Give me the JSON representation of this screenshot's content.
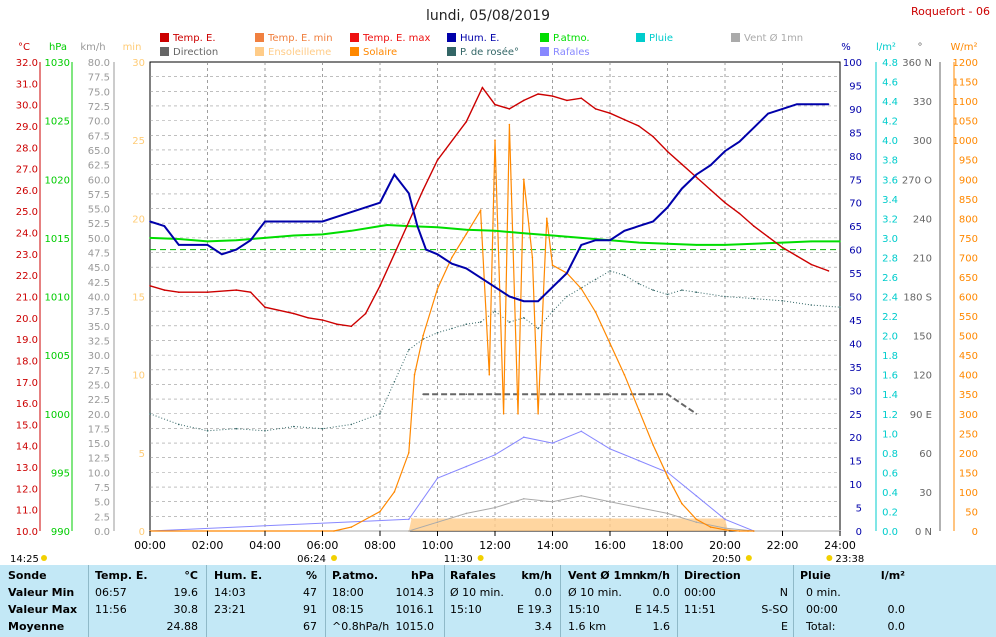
{
  "title": "lundi, 05/08/2019",
  "station": "Roquefort - 06",
  "legend": [
    {
      "label": "Temp. E.",
      "color": "#cc0000"
    },
    {
      "label": "Temp. E. min",
      "color": "#f08040"
    },
    {
      "label": "Temp. E. max",
      "color": "#ee1111"
    },
    {
      "label": "Hum. E.",
      "color": "#0000aa"
    },
    {
      "label": "P.atmo.",
      "color": "#00dd00"
    },
    {
      "label": "Pluie",
      "color": "#00cccc"
    },
    {
      "label": "Vent Ø 1mn",
      "color": "#aaaaaa"
    },
    {
      "label": "Direction",
      "color": "#666666"
    },
    {
      "label": "Ensoleilleme",
      "color": "#ffcc88"
    },
    {
      "label": "Solaire",
      "color": "#ff8800"
    },
    {
      "label": "P. de rosée°",
      "color": "#336666"
    },
    {
      "label": "Rafales",
      "color": "#8888ff"
    }
  ],
  "axes": {
    "temp": {
      "unit": "°C",
      "color": "#cc0000",
      "ticks": [
        "32.0",
        "31.0",
        "30.0",
        "29.0",
        "28.0",
        "27.0",
        "26.0",
        "25.0",
        "24.0",
        "23.0",
        "22.0",
        "21.0",
        "20.0",
        "19.0",
        "18.0",
        "17.0",
        "16.0",
        "15.0",
        "14.0",
        "13.0",
        "12.0",
        "11.0",
        "10.0"
      ]
    },
    "pressure": {
      "unit": "hPa",
      "color": "#00cc00",
      "ticks": [
        "1030",
        "1025",
        "1020",
        "1015",
        "1010",
        "1005",
        "1000",
        "995",
        "990"
      ]
    },
    "wind": {
      "unit": "km/h",
      "color": "#999999",
      "ticks": [
        "80.0",
        "77.5",
        "75.0",
        "72.5",
        "70.0",
        "67.5",
        "65.0",
        "62.5",
        "60.0",
        "57.5",
        "55.0",
        "52.5",
        "50.0",
        "47.5",
        "45.0",
        "42.5",
        "40.0",
        "37.5",
        "35.0",
        "32.5",
        "30.0",
        "27.5",
        "25.0",
        "22.5",
        "20.0",
        "17.5",
        "15.0",
        "12.5",
        "10.0",
        "7.5",
        "5.0",
        "2.5",
        "0.0"
      ]
    },
    "sun_min": {
      "unit": "min",
      "color": "#ffcc77",
      "ticks": [
        "30",
        "25",
        "20",
        "15",
        "10",
        "5",
        "0"
      ]
    },
    "humidity": {
      "unit": "%",
      "color": "#0000aa",
      "ticks": [
        "100",
        "95",
        "90",
        "85",
        "80",
        "75",
        "70",
        "65",
        "60",
        "55",
        "50",
        "45",
        "40",
        "35",
        "30",
        "25",
        "20",
        "15",
        "10",
        "5",
        "0"
      ]
    },
    "rain": {
      "unit": "l/m²",
      "color": "#00cccc",
      "ticks": [
        "4.8",
        "4.6",
        "4.4",
        "4.2",
        "4.0",
        "3.8",
        "3.6",
        "3.4",
        "3.2",
        "3.0",
        "2.8",
        "2.6",
        "2.4",
        "2.2",
        "2.0",
        "1.8",
        "1.6",
        "1.4",
        "1.2",
        "1.0",
        "0.8",
        "0.6",
        "0.4",
        "0.2",
        "0.0"
      ]
    },
    "direction": {
      "unit": "°",
      "color": "#666666",
      "ticks": [
        "360 N",
        "330",
        "300",
        "270 O",
        "240",
        "210",
        "180 S",
        "150",
        "120",
        "90 E",
        "60",
        "30",
        "0 N"
      ]
    },
    "solar": {
      "unit": "W/m²",
      "color": "#ff8800",
      "ticks": [
        "1200",
        "1150",
        "1100",
        "1050",
        "1000",
        "950",
        "900",
        "850",
        "800",
        "750",
        "700",
        "650",
        "600",
        "550",
        "500",
        "450",
        "400",
        "350",
        "300",
        "250",
        "200",
        "150",
        "100",
        "50",
        "0"
      ]
    }
  },
  "x_ticks": [
    "00:00",
    "02:00",
    "04:00",
    "06:00",
    "08:00",
    "10:00",
    "12:00",
    "14:00",
    "16:00",
    "18:00",
    "20:00",
    "22:00",
    "24:00"
  ],
  "sun_marks": [
    {
      "label": "14:25",
      "position": "left"
    },
    {
      "label": "06:24",
      "position": "sunrise"
    },
    {
      "label": "11:30",
      "position": "noon"
    },
    {
      "label": "20:50",
      "position": "sunset"
    },
    {
      "label": "23:38",
      "position": "right"
    }
  ],
  "chart_data": {
    "type": "line",
    "x_unit": "hours",
    "xlim": [
      0,
      24
    ],
    "series": [
      {
        "name": "Temp. E.",
        "axis": "temp",
        "x": [
          0,
          0.5,
          1,
          2,
          3,
          3.5,
          4,
          5,
          5.5,
          6,
          6.5,
          7,
          7.5,
          8,
          8.5,
          9,
          9.5,
          10,
          11,
          11.56,
          12,
          12.5,
          13,
          13.5,
          14,
          14.5,
          15,
          15.5,
          16,
          16.5,
          17,
          17.5,
          18,
          18.5,
          19,
          19.5,
          20,
          20.5,
          21,
          21.5,
          22,
          22.5,
          23,
          23.6
        ],
        "y": [
          21.5,
          21.3,
          21.2,
          21.2,
          21.3,
          21.2,
          20.5,
          20.2,
          20.0,
          19.9,
          19.7,
          19.6,
          20.2,
          21.5,
          23.0,
          24.5,
          26.0,
          27.4,
          29.2,
          30.8,
          30.0,
          29.8,
          30.2,
          30.5,
          30.4,
          30.2,
          30.3,
          29.8,
          29.6,
          29.3,
          29.0,
          28.5,
          27.8,
          27.2,
          26.6,
          26.0,
          25.4,
          24.9,
          24.3,
          23.8,
          23.3,
          22.9,
          22.5,
          22.2
        ]
      },
      {
        "name": "Hum. E.",
        "axis": "humidity",
        "x": [
          0,
          0.5,
          1,
          2,
          2.5,
          3,
          3.5,
          4,
          5,
          6,
          7,
          8,
          8.5,
          9,
          9.3,
          9.6,
          10,
          10.5,
          11,
          11.5,
          12,
          12.5,
          13,
          13.5,
          14,
          14.5,
          15,
          15.5,
          16,
          16.5,
          17,
          17.5,
          18,
          18.5,
          19,
          19.5,
          20,
          20.5,
          21,
          21.5,
          22,
          22.5,
          23,
          23.6
        ],
        "y": [
          66,
          65,
          61,
          61,
          59,
          60,
          62,
          66,
          66,
          66,
          68,
          70,
          76,
          72,
          65,
          60,
          59,
          57,
          56,
          54,
          52,
          50,
          49,
          49,
          52,
          55,
          61,
          62,
          62,
          64,
          65,
          66,
          69,
          73,
          76,
          78,
          81,
          83,
          86,
          89,
          90,
          91,
          91,
          91
        ]
      },
      {
        "name": "P.atmo.",
        "axis": "pressure",
        "x": [
          0,
          1,
          2,
          3,
          4,
          5,
          6,
          7,
          8,
          8.25,
          9,
          10,
          11,
          12,
          13,
          14,
          15,
          16,
          17,
          18,
          19,
          20,
          21,
          22,
          23,
          24
        ],
        "y": [
          1015.0,
          1014.9,
          1014.7,
          1014.8,
          1015.0,
          1015.2,
          1015.3,
          1015.6,
          1016.0,
          1016.1,
          1016.0,
          1015.9,
          1015.7,
          1015.6,
          1015.4,
          1015.2,
          1015.0,
          1014.8,
          1014.6,
          1014.5,
          1014.4,
          1014.4,
          1014.5,
          1014.6,
          1014.7,
          1014.7
        ]
      },
      {
        "name": "P. de rosée°",
        "axis": "temp",
        "x": [
          0,
          1,
          2,
          3,
          4,
          5,
          6,
          7,
          8,
          8.5,
          9,
          9.5,
          10,
          10.5,
          11,
          11.5,
          12,
          12.5,
          13,
          13.5,
          14,
          14.5,
          15,
          15.5,
          16,
          16.5,
          17,
          17.5,
          18,
          18.5,
          19,
          20,
          21,
          22,
          23,
          24
        ],
        "y": [
          15.5,
          15.0,
          14.7,
          14.8,
          14.7,
          14.9,
          14.8,
          15.0,
          15.5,
          17.0,
          18.5,
          19.0,
          19.3,
          19.5,
          19.7,
          19.8,
          20.3,
          19.8,
          20.0,
          19.5,
          20.3,
          21.0,
          21.4,
          21.8,
          22.2,
          22.0,
          21.6,
          21.3,
          21.1,
          21.3,
          21.2,
          21.0,
          20.9,
          20.8,
          20.6,
          20.5
        ]
      },
      {
        "name": "Solaire",
        "axis": "solar",
        "x": [
          0,
          6.4,
          7,
          8,
          8.5,
          9,
          9.2,
          9.5,
          10,
          10.5,
          11,
          11.5,
          11.8,
          12,
          12.3,
          12.5,
          12.8,
          13,
          13.3,
          13.5,
          13.8,
          14,
          14.5,
          15,
          15.5,
          16,
          16.5,
          17,
          17.5,
          18,
          18.5,
          19,
          19.5,
          20,
          20.5,
          20.8,
          21
        ],
        "y": [
          0,
          0,
          10,
          50,
          100,
          200,
          400,
          500,
          620,
          700,
          760,
          820,
          400,
          1000,
          300,
          1040,
          300,
          900,
          700,
          300,
          800,
          680,
          660,
          620,
          560,
          480,
          400,
          310,
          220,
          140,
          70,
          30,
          10,
          3,
          0,
          0,
          0
        ]
      },
      {
        "name": "Vent Ø 1mn",
        "axis": "wind",
        "x": [
          0,
          9,
          10,
          11,
          12,
          13,
          14,
          15,
          16,
          17,
          18,
          19,
          20,
          21,
          24
        ],
        "y": [
          0,
          0,
          1.5,
          3,
          4,
          5.5,
          5,
          6,
          5,
          4,
          3,
          1.5,
          0.5,
          0,
          0
        ]
      },
      {
        "name": "Rafales",
        "axis": "wind",
        "x": [
          0,
          9,
          10,
          11,
          12,
          13,
          14,
          15,
          16,
          17,
          18,
          19,
          20,
          21,
          24
        ],
        "y": [
          0,
          2,
          9,
          11,
          13,
          16,
          15,
          17,
          14,
          12,
          10,
          6,
          2,
          0,
          0
        ]
      },
      {
        "name": "Direction",
        "axis": "direction",
        "x": [
          9.5,
          11,
          12,
          13,
          14,
          15,
          16,
          17,
          18,
          19
        ],
        "y": [
          105,
          105,
          105,
          105,
          105,
          105,
          105,
          105,
          105,
          90
        ]
      },
      {
        "name": "Ensoleilleme",
        "axis": "sun_min",
        "x": [
          0,
          9,
          9.1,
          20,
          20.1,
          24
        ],
        "y": [
          0,
          0,
          0.8,
          0.8,
          0,
          0
        ]
      }
    ]
  },
  "table": {
    "headers": [
      "Sonde",
      "Temp. E.",
      "°C",
      "Hum. E.",
      "%",
      "P.atmo.",
      "hPa",
      "Rafales",
      "km/h",
      "Vent Ø 1mn",
      "km/h",
      "Direction",
      "Pluie",
      "l/m²"
    ],
    "rows": [
      {
        "label": "Valeur Min",
        "cells": [
          "06:57",
          "19.6",
          "14:03",
          "47",
          "18:00",
          "1014.3",
          "Ø 10 min.",
          "0.0",
          "Ø 10 min.",
          "0.0",
          "00:00",
          "N",
          "0 min.",
          ""
        ]
      },
      {
        "label": "Valeur Max",
        "cells": [
          "11:56",
          "30.8",
          "23:21",
          "91",
          "08:15",
          "1016.1",
          "15:10",
          "E 19.3",
          "15:10",
          "E 14.5",
          "11:51",
          "S-SO",
          "00:00",
          "0.0"
        ]
      },
      {
        "label": "Moyenne",
        "cells": [
          "",
          "24.88",
          "",
          "67",
          "^0.8hPa/h",
          "1015.0",
          "",
          "3.4",
          "1.6 km",
          "1.6",
          "",
          "E",
          "Total:",
          "0.0"
        ]
      }
    ]
  }
}
